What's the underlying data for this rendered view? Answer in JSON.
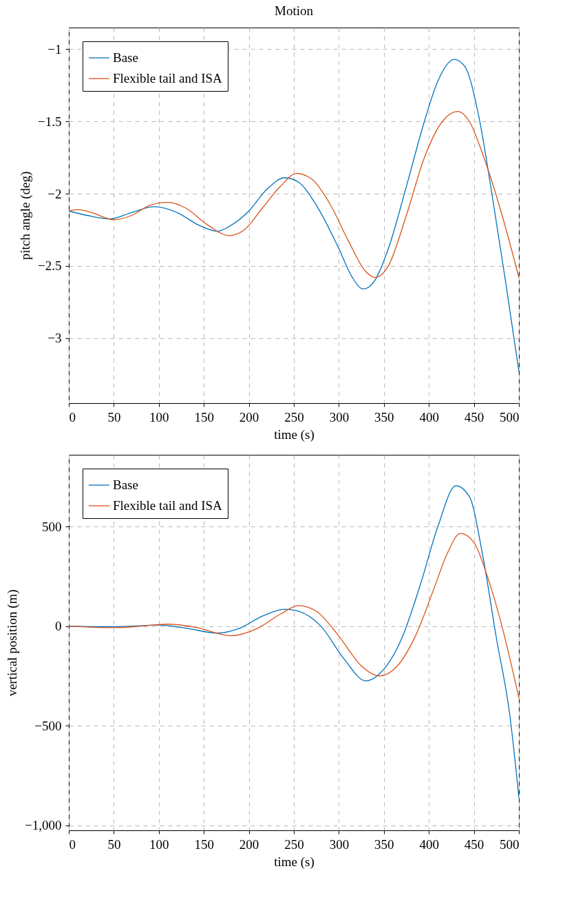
{
  "chart_data": [
    {
      "type": "line",
      "title": "Motion",
      "xlabel": "time (s)",
      "ylabel": "pitch angle (deg)",
      "xlim": [
        0,
        500
      ],
      "xticks": [
        0,
        50,
        100,
        150,
        200,
        250,
        300,
        350,
        400,
        450,
        500
      ],
      "ylim": [
        -3.45,
        -0.85
      ],
      "yticks": [
        -3,
        -2.5,
        -2,
        -1.5,
        -1
      ],
      "grid": true,
      "legend": "top left",
      "marker": "none",
      "line_style": "solid",
      "series": [
        {
          "name": "Base",
          "color": "#0072bd",
          "x": [
            0,
            20,
            45,
            70,
            95,
            120,
            145,
            165,
            180,
            200,
            220,
            240,
            255,
            275,
            300,
            315,
            327,
            340,
            355,
            375,
            395,
            410,
            428,
            440,
            455,
            470,
            485,
            500
          ],
          "values": [
            -2.12,
            -2.15,
            -2.175,
            -2.13,
            -2.09,
            -2.13,
            -2.22,
            -2.26,
            -2.22,
            -2.12,
            -1.97,
            -1.89,
            -1.92,
            -2.08,
            -2.38,
            -2.58,
            -2.66,
            -2.6,
            -2.38,
            -1.95,
            -1.5,
            -1.22,
            -1.07,
            -1.12,
            -1.45,
            -2.0,
            -2.6,
            -3.23
          ]
        },
        {
          "name": "Flexible tail and ISA",
          "color": "#d95319",
          "x": [
            0,
            10,
            25,
            50,
            70,
            90,
            110,
            130,
            155,
            178,
            195,
            215,
            235,
            253,
            270,
            290,
            310,
            330,
            340,
            355,
            375,
            395,
            415,
            432,
            445,
            460,
            480,
            500
          ],
          "values": [
            -2.12,
            -2.11,
            -2.13,
            -2.18,
            -2.15,
            -2.08,
            -2.06,
            -2.1,
            -2.22,
            -2.29,
            -2.25,
            -2.1,
            -1.95,
            -1.86,
            -1.9,
            -2.07,
            -2.32,
            -2.54,
            -2.58,
            -2.5,
            -2.15,
            -1.75,
            -1.5,
            -1.43,
            -1.5,
            -1.73,
            -2.12,
            -2.58
          ]
        }
      ]
    },
    {
      "type": "line",
      "xlabel": "time (s)",
      "ylabel": "vertical position (m)",
      "xlim": [
        0,
        500
      ],
      "xticks": [
        0,
        50,
        100,
        150,
        200,
        250,
        300,
        350,
        400,
        450,
        500
      ],
      "ylim": [
        -1025,
        860
      ],
      "yticks": [
        {
          "value": -1000,
          "label": "−1,000"
        },
        -500,
        0,
        500
      ],
      "grid": true,
      "legend": "top left",
      "marker": "none",
      "line_style": "solid",
      "series": [
        {
          "name": "Base",
          "color": "#0072bd",
          "x": [
            0,
            50,
            100,
            130,
            165,
            190,
            215,
            240,
            255,
            280,
            305,
            330,
            345,
            370,
            390,
            410,
            430,
            445,
            460,
            475,
            490,
            500
          ],
          "values": [
            0,
            -3,
            5,
            -10,
            -35,
            -10,
            50,
            85,
            75,
            0,
            -160,
            -275,
            -240,
            -60,
            200,
            500,
            705,
            650,
            350,
            -60,
            -450,
            -860
          ]
        },
        {
          "name": "Flexible tail and ISA",
          "color": "#d95319",
          "x": [
            0,
            50,
            80,
            110,
            140,
            180,
            210,
            235,
            255,
            275,
            300,
            325,
            345,
            365,
            385,
            405,
            420,
            435,
            450,
            465,
            480,
            500
          ],
          "values": [
            0,
            -8,
            0,
            10,
            -5,
            -48,
            -10,
            60,
            103,
            75,
            -50,
            -200,
            -250,
            -200,
            -50,
            180,
            360,
            465,
            420,
            250,
            20,
            -360
          ]
        }
      ]
    }
  ]
}
